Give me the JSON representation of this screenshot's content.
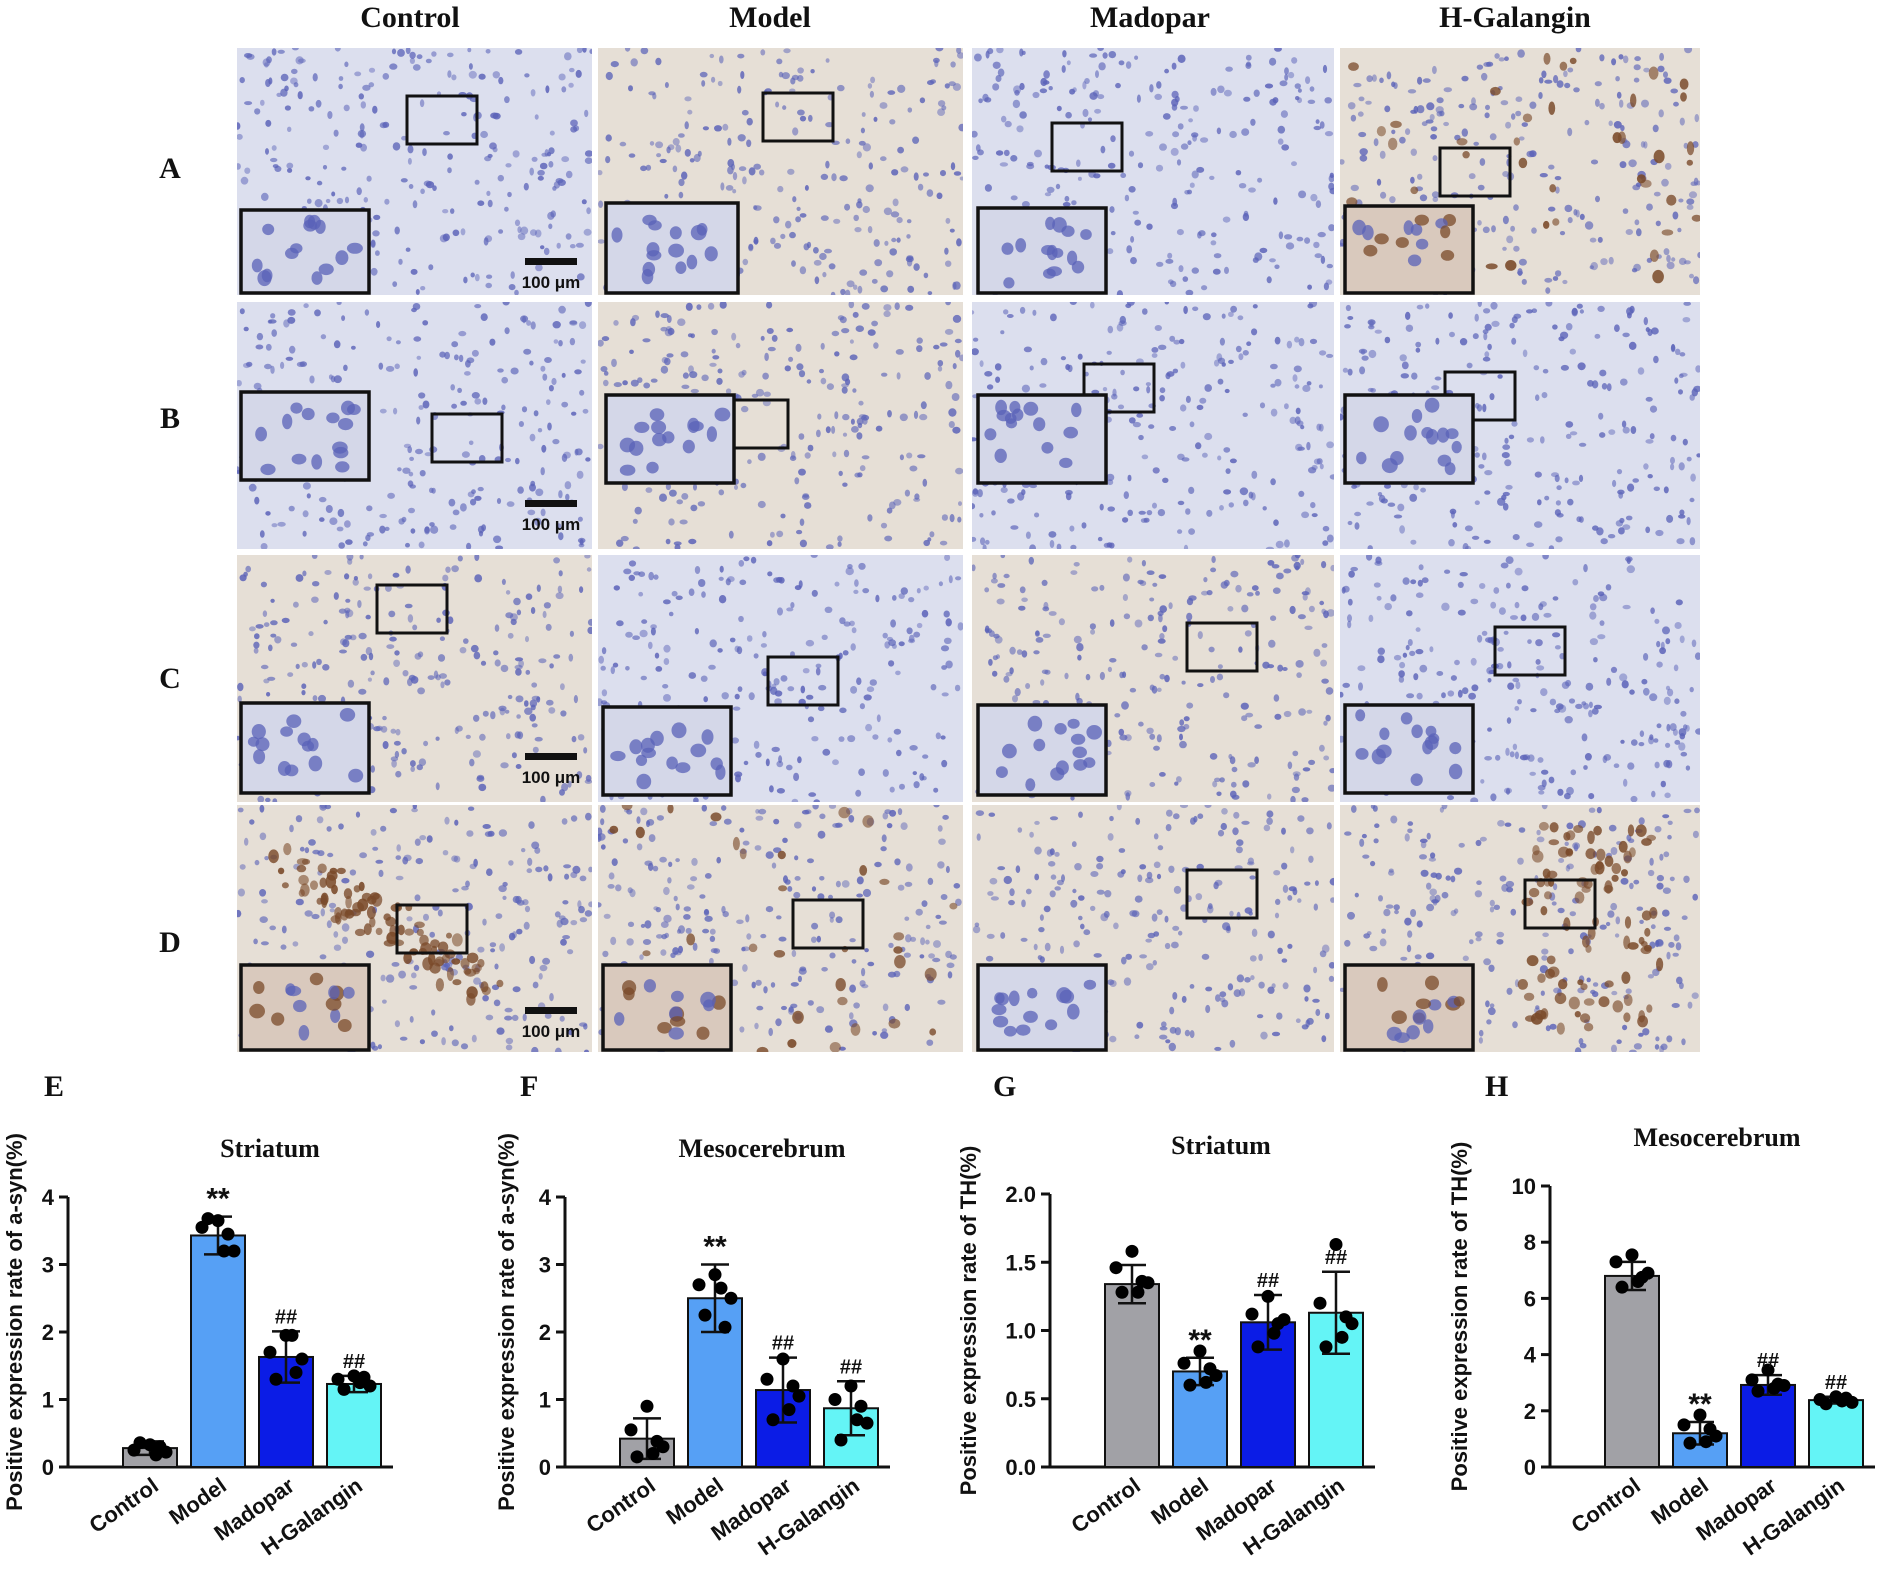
{
  "columns": [
    "Control",
    "Model",
    "Madopar",
    "H-Galangin"
  ],
  "rows": [
    "A",
    "B",
    "C",
    "D"
  ],
  "scale_bar_label": "100 μm",
  "stain_colors": {
    "background_light": "#dcdfee",
    "background_warm": "#e6dfd6",
    "nucleus": "#5a62b8",
    "brown_positive": "#7a4a2a"
  },
  "panel_stain": [
    [
      "light",
      "warm-light",
      "light",
      "brown-sparse"
    ],
    [
      "light",
      "warm-light",
      "light",
      "light"
    ],
    [
      "warm-light",
      "light",
      "warm-light",
      "light"
    ],
    [
      "brown-heavy",
      "brown-medium",
      "warm-light",
      "brown-heavy"
    ]
  ],
  "bar_colors": {
    "Control": "#a1a1a6",
    "Model": "#56a0f5",
    "Madopar": "#0b1ce6",
    "H-Galangin": "#64f4f6"
  },
  "chart_data": [
    {
      "panel": "E",
      "type": "bar",
      "title": "Striatum",
      "ylabel": "Positive expression rate of a-syn(%)",
      "categories": [
        "Control",
        "Model",
        "Madopar",
        "H-Galangin"
      ],
      "values": [
        0.28,
        3.43,
        1.63,
        1.23
      ],
      "errors": [
        0.1,
        0.28,
        0.38,
        0.12
      ],
      "points": [
        [
          0.33,
          0.25,
          0.22,
          0.36,
          0.3,
          0.18
        ],
        [
          3.65,
          3.55,
          3.2,
          3.68,
          3.45,
          3.2
        ],
        [
          1.95,
          1.7,
          1.6,
          1.3,
          1.4,
          1.95
        ],
        [
          1.35,
          1.3,
          1.2,
          1.15,
          1.33,
          1.25
        ]
      ],
      "annotations": [
        "",
        "**",
        "##",
        "##"
      ],
      "ylim": [
        0,
        4
      ],
      "yticks": [
        "0",
        "1",
        "2",
        "3",
        "4"
      ]
    },
    {
      "panel": "F",
      "type": "bar",
      "title": "Mesocerebrum",
      "ylabel": "Positive expression rate of a-syn(%)",
      "categories": [
        "Control",
        "Model",
        "Madopar",
        "H-Galangin"
      ],
      "values": [
        0.42,
        2.5,
        1.14,
        0.87
      ],
      "errors": [
        0.3,
        0.5,
        0.48,
        0.4
      ],
      "points": [
        [
          0.9,
          0.55,
          0.3,
          0.15,
          0.38,
          0.2
        ],
        [
          2.85,
          2.7,
          2.5,
          2.25,
          2.07,
          2.65
        ],
        [
          1.6,
          1.3,
          1.05,
          0.7,
          1.2,
          0.85
        ],
        [
          1.2,
          1.0,
          0.65,
          0.4,
          0.9,
          0.7
        ]
      ],
      "annotations": [
        "",
        "**",
        "##",
        "##"
      ],
      "ylim": [
        0,
        4
      ],
      "yticks": [
        "0",
        "1",
        "2",
        "3",
        "4"
      ]
    },
    {
      "panel": "G",
      "type": "bar",
      "title": "Striatum",
      "ylabel": "Positive expression rate of TH(%)",
      "categories": [
        "Control",
        "Model",
        "Madopar",
        "H-Galangin"
      ],
      "values": [
        1.34,
        0.7,
        1.06,
        1.13
      ],
      "errors": [
        0.14,
        0.1,
        0.2,
        0.3
      ],
      "points": [
        [
          1.58,
          1.46,
          1.35,
          1.28,
          1.36,
          1.28
        ],
        [
          0.85,
          0.76,
          0.67,
          0.6,
          0.72,
          0.62
        ],
        [
          1.25,
          1.12,
          1.08,
          0.88,
          1.05,
          0.98
        ],
        [
          1.63,
          1.2,
          1.05,
          0.88,
          1.1,
          0.95
        ]
      ],
      "annotations": [
        "",
        "**",
        "##",
        "##"
      ],
      "ylim": [
        0,
        2
      ],
      "yticks": [
        "0.0",
        "0.5",
        "1.0",
        "1.5",
        "2.0"
      ]
    },
    {
      "panel": "H",
      "type": "bar",
      "title": "Mesocerebrum",
      "ylabel": "Positive expression rate of TH(%)",
      "categories": [
        "Control",
        "Model",
        "Madopar",
        "H-Galangin"
      ],
      "values": [
        6.8,
        1.2,
        2.92,
        2.38
      ],
      "errors": [
        0.5,
        0.4,
        0.35,
        0.12
      ],
      "points": [
        [
          7.55,
          7.3,
          6.9,
          6.4,
          6.75,
          6.6
        ],
        [
          1.85,
          1.5,
          1.1,
          0.85,
          1.35,
          0.9
        ],
        [
          3.45,
          3.1,
          2.9,
          2.7,
          2.95,
          2.8
        ],
        [
          2.5,
          2.4,
          2.3,
          2.25,
          2.45,
          2.35
        ]
      ],
      "annotations": [
        "",
        "**",
        "##",
        "##"
      ],
      "ylim": [
        0,
        10
      ],
      "yticks": [
        "0",
        "2",
        "4",
        "6",
        "8",
        "10"
      ]
    }
  ]
}
